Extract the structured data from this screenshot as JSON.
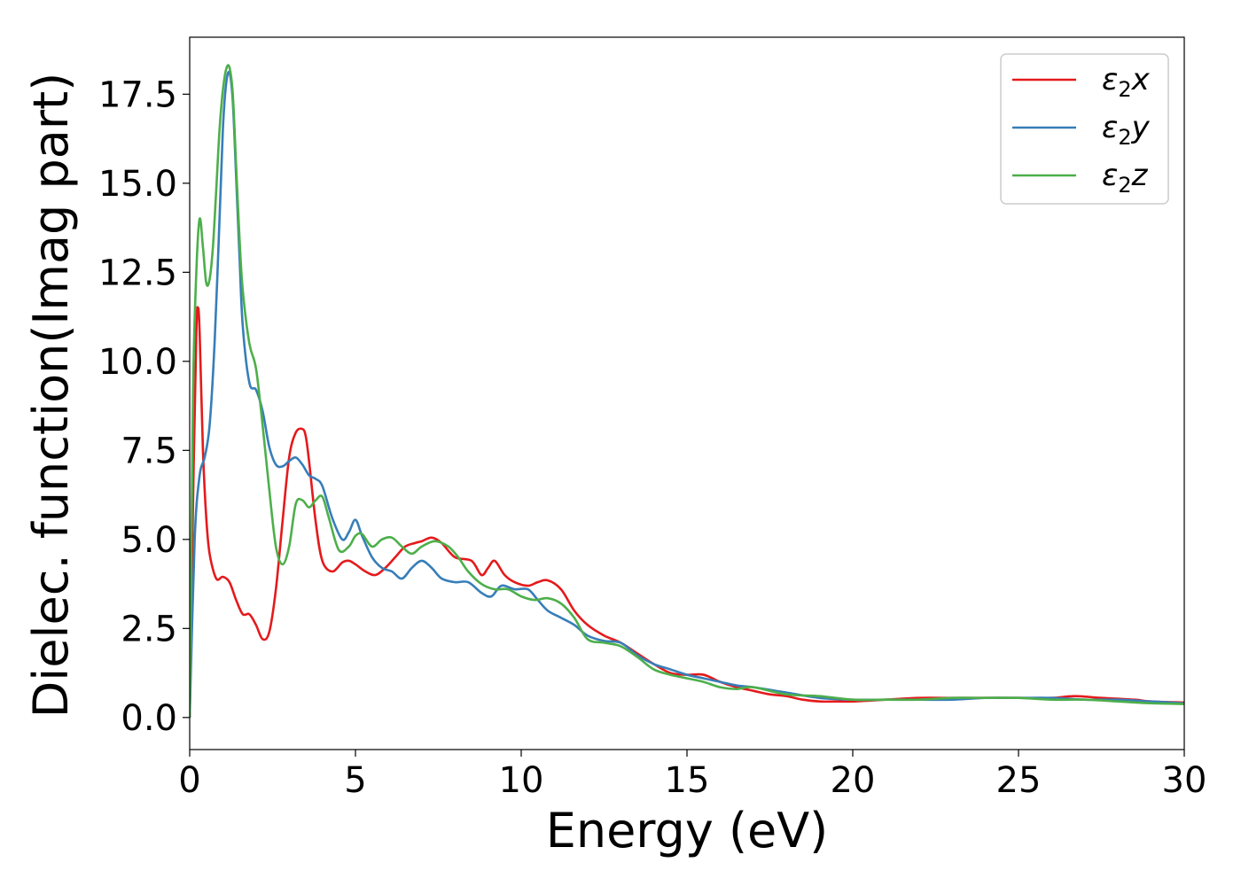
{
  "chart_data": {
    "type": "line",
    "title": "",
    "xlabel": "Energy (eV)",
    "ylabel": "Dielec. function(Imag part)",
    "xlim": [
      0,
      30
    ],
    "ylim": [
      -0.9,
      19.1
    ],
    "xticks": [
      0,
      5,
      10,
      15,
      20,
      25,
      30
    ],
    "xtick_labels": [
      "0",
      "5",
      "10",
      "15",
      "20",
      "25",
      "30"
    ],
    "yticks": [
      0.0,
      2.5,
      5.0,
      7.5,
      10.0,
      12.5,
      15.0,
      17.5
    ],
    "ytick_labels": [
      "0.0",
      "2.5",
      "5.0",
      "7.5",
      "10.0",
      "12.5",
      "15.0",
      "17.5"
    ],
    "grid": false,
    "legend_position": "top-right",
    "series": [
      {
        "name": "ε2x",
        "legend_base": "ε",
        "legend_sub": "2",
        "legend_var": "x",
        "color": "#e41a1c",
        "x": [
          0,
          0.1,
          0.2,
          0.25,
          0.3,
          0.4,
          0.5,
          0.6,
          0.8,
          1.0,
          1.2,
          1.4,
          1.6,
          1.8,
          2.0,
          2.2,
          2.4,
          2.6,
          2.8,
          3.0,
          3.2,
          3.4,
          3.5,
          3.6,
          3.8,
          4.0,
          4.3,
          4.6,
          4.8,
          5.0,
          5.3,
          5.6,
          5.9,
          6.2,
          6.5,
          6.8,
          7.0,
          7.3,
          7.6,
          8.0,
          8.5,
          8.8,
          9.0,
          9.2,
          9.5,
          9.8,
          10.2,
          10.5,
          10.8,
          11.2,
          11.6,
          12.0,
          12.5,
          13.0,
          13.5,
          14.0,
          14.5,
          15.0,
          15.5,
          16.0,
          16.5,
          17.0,
          17.5,
          18.0,
          18.5,
          19.0,
          19.5,
          20.0,
          21.0,
          22.0,
          23.0,
          24.0,
          25.0,
          26.0,
          26.7,
          27.5,
          28.5,
          29.0,
          30.0
        ],
        "y": [
          0,
          6.0,
          10.8,
          11.5,
          10.8,
          7.5,
          5.6,
          4.6,
          3.9,
          3.95,
          3.8,
          3.3,
          2.9,
          2.9,
          2.6,
          2.2,
          2.4,
          3.6,
          5.5,
          7.3,
          8.0,
          8.1,
          7.9,
          7.2,
          5.5,
          4.4,
          4.1,
          4.35,
          4.4,
          4.3,
          4.1,
          4.0,
          4.2,
          4.5,
          4.8,
          4.9,
          4.95,
          5.05,
          4.9,
          4.5,
          4.4,
          4.0,
          4.2,
          4.4,
          4.0,
          3.8,
          3.7,
          3.8,
          3.85,
          3.6,
          3.0,
          2.6,
          2.3,
          2.1,
          1.8,
          1.5,
          1.25,
          1.2,
          1.2,
          1.0,
          0.85,
          0.75,
          0.65,
          0.6,
          0.5,
          0.45,
          0.45,
          0.45,
          0.5,
          0.55,
          0.55,
          0.55,
          0.55,
          0.55,
          0.6,
          0.55,
          0.5,
          0.45,
          0.42
        ]
      },
      {
        "name": "ε2y",
        "legend_base": "ε",
        "legend_sub": "2",
        "legend_var": "y",
        "color": "#377eb8",
        "x": [
          0,
          0.15,
          0.3,
          0.45,
          0.6,
          0.75,
          0.9,
          1.0,
          1.1,
          1.2,
          1.3,
          1.4,
          1.5,
          1.6,
          1.8,
          2.0,
          2.2,
          2.4,
          2.6,
          2.8,
          3.0,
          3.2,
          3.4,
          3.6,
          3.8,
          4.0,
          4.3,
          4.6,
          4.8,
          5.0,
          5.2,
          5.5,
          5.8,
          6.1,
          6.4,
          6.7,
          7.0,
          7.3,
          7.6,
          8.0,
          8.4,
          8.8,
          9.1,
          9.4,
          9.8,
          10.2,
          10.5,
          10.8,
          11.2,
          11.6,
          12.0,
          12.5,
          13.0,
          13.5,
          14.0,
          14.5,
          15.0,
          15.5,
          16.0,
          16.5,
          17.0,
          18.0,
          19.0,
          20.0,
          21.0,
          22.0,
          23.0,
          24.0,
          25.0,
          26.0,
          27.0,
          28.0,
          29.0,
          30.0
        ],
        "y": [
          0,
          5.0,
          6.8,
          7.3,
          8.2,
          10.5,
          14.0,
          16.5,
          17.8,
          18.1,
          17.3,
          15.2,
          13.0,
          11.0,
          9.4,
          9.2,
          8.6,
          7.6,
          7.1,
          7.05,
          7.2,
          7.3,
          7.1,
          6.8,
          6.7,
          6.5,
          5.6,
          5.0,
          5.2,
          5.55,
          5.1,
          4.5,
          4.2,
          4.1,
          3.9,
          4.2,
          4.4,
          4.2,
          3.9,
          3.8,
          3.8,
          3.5,
          3.4,
          3.7,
          3.6,
          3.6,
          3.3,
          3.0,
          2.8,
          2.6,
          2.3,
          2.15,
          2.1,
          1.75,
          1.5,
          1.35,
          1.2,
          1.1,
          1.0,
          0.9,
          0.85,
          0.7,
          0.55,
          0.5,
          0.5,
          0.5,
          0.5,
          0.55,
          0.55,
          0.55,
          0.5,
          0.5,
          0.45,
          0.4
        ]
      },
      {
        "name": "ε2z",
        "legend_base": "ε",
        "legend_sub": "2",
        "legend_var": "z",
        "color": "#4daf4a",
        "x": [
          0,
          0.1,
          0.2,
          0.3,
          0.4,
          0.5,
          0.6,
          0.7,
          0.8,
          0.9,
          1.0,
          1.1,
          1.2,
          1.3,
          1.4,
          1.5,
          1.6,
          1.8,
          2.0,
          2.2,
          2.4,
          2.6,
          2.8,
          3.0,
          3.2,
          3.4,
          3.6,
          3.8,
          4.0,
          4.2,
          4.5,
          4.8,
          5.0,
          5.2,
          5.5,
          5.8,
          6.1,
          6.4,
          6.7,
          7.0,
          7.4,
          7.8,
          8.1,
          8.4,
          8.8,
          9.2,
          9.6,
          10.0,
          10.4,
          10.8,
          11.2,
          11.6,
          12.0,
          12.5,
          13.0,
          13.5,
          14.0,
          14.5,
          15.0,
          15.5,
          16.0,
          16.5,
          17.0,
          18.0,
          19.0,
          20.0,
          21.0,
          22.0,
          23.0,
          24.0,
          25.0,
          26.0,
          27.0,
          28.0,
          29.0,
          30.0
        ],
        "y": [
          0,
          9.0,
          12.5,
          14.0,
          13.2,
          12.2,
          12.3,
          13.2,
          14.8,
          16.5,
          17.6,
          18.2,
          18.25,
          17.5,
          15.5,
          13.5,
          12.0,
          10.5,
          9.8,
          8.2,
          6.4,
          4.8,
          4.3,
          4.8,
          6.0,
          6.1,
          5.9,
          6.1,
          6.2,
          5.6,
          4.7,
          4.8,
          5.1,
          5.15,
          4.8,
          5.0,
          5.05,
          4.8,
          4.6,
          4.8,
          4.95,
          4.8,
          4.5,
          4.1,
          3.75,
          3.6,
          3.6,
          3.4,
          3.3,
          3.35,
          3.2,
          2.8,
          2.2,
          2.1,
          2.0,
          1.7,
          1.35,
          1.2,
          1.1,
          1.0,
          0.85,
          0.8,
          0.85,
          0.65,
          0.6,
          0.5,
          0.5,
          0.5,
          0.55,
          0.55,
          0.55,
          0.5,
          0.5,
          0.45,
          0.4,
          0.38
        ]
      }
    ]
  }
}
